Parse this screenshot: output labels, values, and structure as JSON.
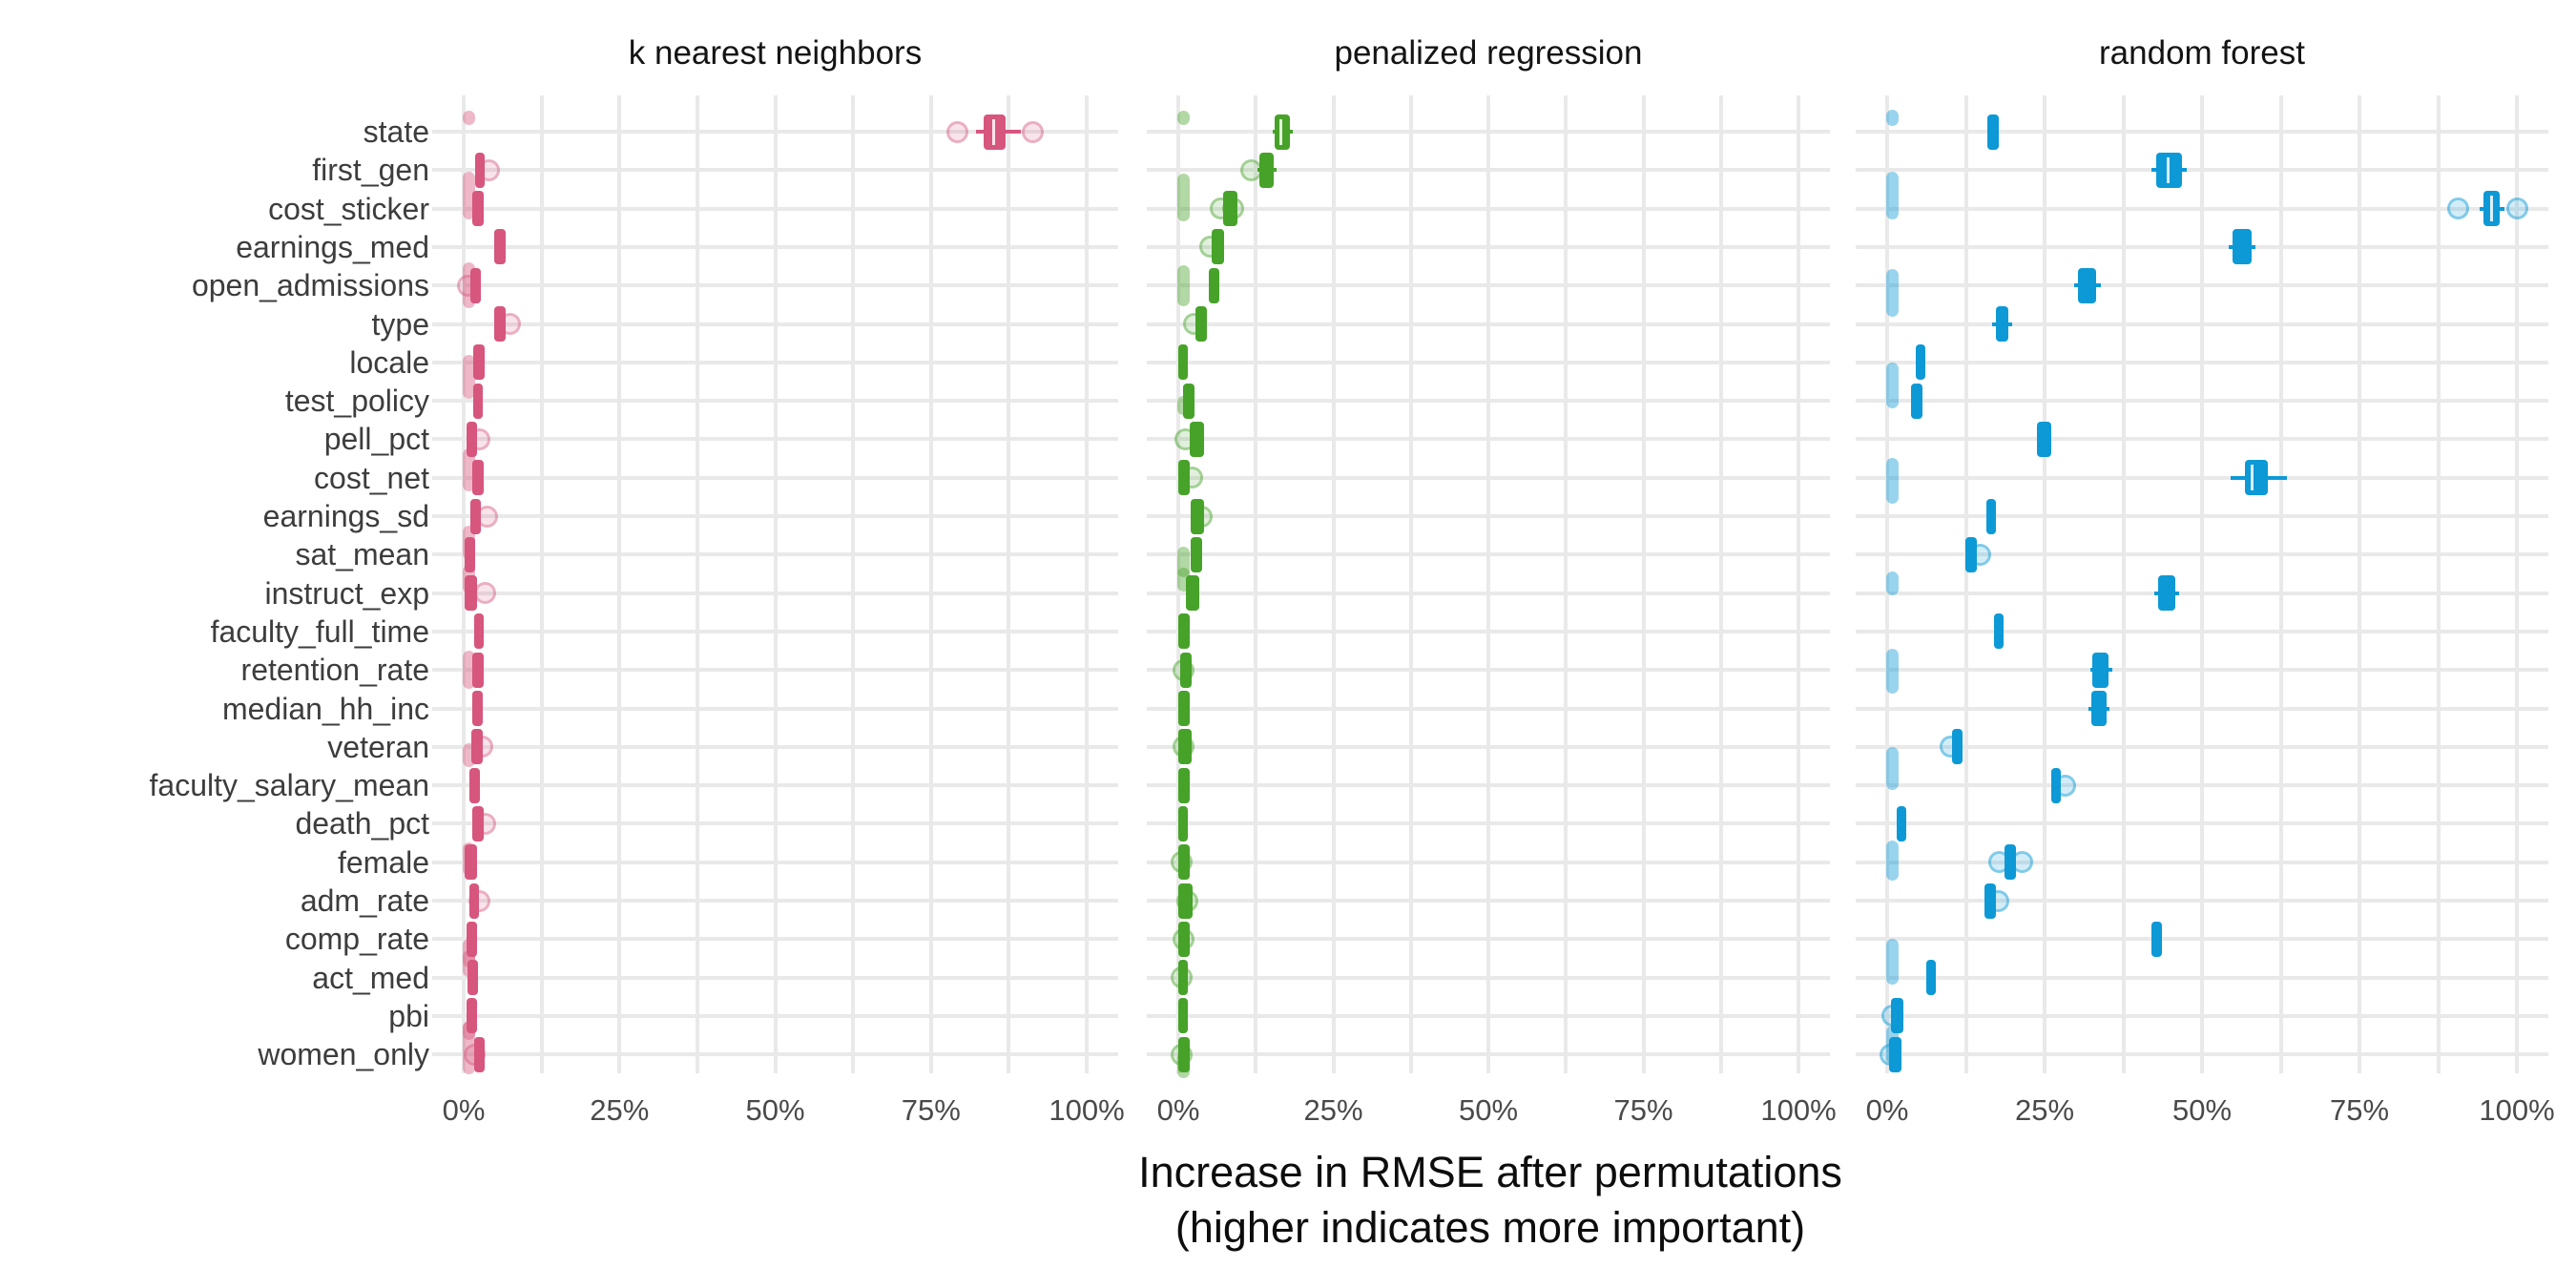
{
  "axis": {
    "x_tick_labels": [
      "0%",
      "25%",
      "50%",
      "75%",
      "100%"
    ],
    "x_tick_values": [
      0,
      25,
      50,
      75,
      100
    ],
    "caption_line1": "Increase in RMSE after permutations",
    "caption_line2": "(higher indicates more important)"
  },
  "colors": {
    "grid": "#e9e9e9",
    "knn": "#d6567e",
    "knn_light": "rgba(214,86,126,0.42)",
    "knn_pt_fill": "rgba(214,86,126,0.16)",
    "knn_pt_rim": "rgba(214,86,126,0.38)",
    "pen": "#47a229",
    "pen_light": "rgba(71,162,41,0.42)",
    "pen_pt_fill": "rgba(71,162,41,0.16)",
    "pen_pt_rim": "rgba(71,162,41,0.40)",
    "rf": "#0d99d6",
    "rf_light": "rgba(13,153,214,0.42)",
    "rf_pt_fill": "rgba(13,153,214,0.18)",
    "rf_pt_rim": "rgba(13,153,214,0.42)"
  },
  "variables": [
    "state",
    "first_gen",
    "cost_sticker",
    "earnings_med",
    "open_admissions",
    "type",
    "locale",
    "test_policy",
    "pell_pct",
    "cost_net",
    "earnings_sd",
    "sat_mean",
    "instruct_exp",
    "faculty_full_time",
    "retention_rate",
    "median_hh_inc",
    "veteran",
    "faculty_salary_mean",
    "death_pct",
    "female",
    "adm_rate",
    "comp_rate",
    "act_med",
    "pbi",
    "women_only"
  ],
  "chart_data": {
    "type": "boxplot",
    "x_unit": "percent increase in RMSE after permutation",
    "x_range": [
      0,
      100
    ],
    "grid_step_pct": 12.5,
    "legend_position": "none",
    "facets": [
      {
        "name": "k nearest neighbors",
        "color_key": "knn",
        "rows": [
          {
            "v": "state",
            "box": [
              83.5,
              87.0
            ],
            "med": 85.0,
            "whis": [
              82.3,
              89.4
            ],
            "pts": [
              79.3,
              91.3
            ],
            "bar": {
              "x": 0.8,
              "dy": -15,
              "h": 15
            }
          },
          {
            "v": "first_gen",
            "box": [
              1.8,
              3.4
            ],
            "pts": [
              4.0
            ]
          },
          {
            "v": "cost_sticker",
            "box": [
              1.4,
              3.2
            ],
            "bar": {
              "x": 0.8,
              "dy": -14,
              "h": 50
            }
          },
          {
            "v": "earnings_med",
            "box": [
              4.9,
              6.7
            ]
          },
          {
            "v": "open_admissions",
            "box": [
              1.0,
              2.8
            ],
            "pts": [
              0.7
            ],
            "bar": {
              "x": 0.8,
              "dy": 0,
              "h": 48
            }
          },
          {
            "v": "type",
            "box": [
              4.9,
              6.7
            ],
            "pts": [
              7.5
            ]
          },
          {
            "v": "locale",
            "box": [
              1.5,
              3.3
            ],
            "bar": {
              "x": 0.8,
              "dy": 15,
              "h": 46
            }
          },
          {
            "v": "test_policy",
            "box": [
              1.5,
              3.0
            ]
          },
          {
            "v": "pell_pct",
            "box": [
              0.5,
              2.2
            ],
            "pts": [
              2.6
            ]
          },
          {
            "v": "cost_net",
            "box": [
              1.4,
              3.2
            ],
            "bar": {
              "x": 0.8,
              "dy": -8,
              "h": 45
            }
          },
          {
            "v": "earnings_sd",
            "box": [
              1.0,
              2.8
            ],
            "pts": [
              3.7
            ]
          },
          {
            "v": "sat_mean",
            "box": [
              0.2,
              1.8
            ],
            "bar": {
              "x": 0.8,
              "dy": -12,
              "h": 36
            }
          },
          {
            "v": "instruct_exp",
            "box": [
              0.2,
              2.1
            ],
            "pts": [
              3.4
            ],
            "bar": {
              "x": 0.8,
              "dy": -15,
              "h": 30
            }
          },
          {
            "v": "faculty_full_time",
            "box": [
              1.7,
              3.2
            ]
          },
          {
            "v": "retention_rate",
            "box": [
              1.4,
              3.2
            ],
            "bar": {
              "x": 0.8,
              "dy": 0,
              "h": 40
            }
          },
          {
            "v": "median_hh_inc",
            "box": [
              1.4,
              3.0
            ]
          },
          {
            "v": "veteran",
            "box": [
              1.2,
              3.0
            ],
            "pts": [
              3.0
            ],
            "bar": {
              "x": 0.8,
              "dy": 9,
              "h": 25
            }
          },
          {
            "v": "faculty_salary_mean",
            "box": [
              0.9,
              2.6
            ]
          },
          {
            "v": "death_pct",
            "box": [
              1.4,
              3.2
            ],
            "pts": [
              3.5
            ]
          },
          {
            "v": "female",
            "box": [
              0.2,
              2.1
            ],
            "bar": {
              "x": 0.8,
              "dy": -3,
              "h": 35
            }
          },
          {
            "v": "adm_rate",
            "box": [
              0.9,
              2.4
            ],
            "pts": [
              2.6
            ]
          },
          {
            "v": "comp_rate",
            "box": [
              0.4,
              2.1
            ],
            "bar": {
              "x": 0.8,
              "dy": 15,
              "h": 30
            }
          },
          {
            "v": "act_med",
            "box": [
              0.6,
              2.3
            ],
            "bar": {
              "x": 0.8,
              "dy": -15,
              "h": 28
            }
          },
          {
            "v": "pbi",
            "box": [
              0.4,
              2.1
            ],
            "bar": {
              "x": 0.8,
              "dy": 15,
              "h": 20
            }
          },
          {
            "v": "women_only",
            "box": [
              1.7,
              3.4
            ],
            "pts": [
              1.8
            ],
            "bar": {
              "x": 0.8,
              "dy": -7,
              "h": 55
            }
          }
        ]
      },
      {
        "name": "penalized regression",
        "color_key": "pen",
        "rows": [
          {
            "v": "state",
            "box": [
              15.5,
              18.0
            ],
            "med": 16.6,
            "whis": [
              15.2,
              18.5
            ],
            "bar": {
              "x": 0.8,
              "dy": -15,
              "h": 15
            }
          },
          {
            "v": "first_gen",
            "box": [
              13.0,
              15.4
            ],
            "whis": [
              12.7,
              15.8
            ],
            "pts": [
              11.8
            ]
          },
          {
            "v": "cost_sticker",
            "box": [
              7.2,
              9.5
            ],
            "pts": [
              6.9,
              8.8
            ],
            "bar": {
              "x": 0.8,
              "dy": -12,
              "h": 50
            }
          },
          {
            "v": "earnings_med",
            "box": [
              5.4,
              7.4
            ],
            "pts": [
              5.1
            ]
          },
          {
            "v": "open_admissions",
            "box": [
              4.9,
              6.6
            ],
            "bar": {
              "x": 0.8,
              "dy": 0,
              "h": 43
            }
          },
          {
            "v": "type",
            "box": [
              2.8,
              4.6
            ],
            "pts": [
              2.6
            ]
          },
          {
            "v": "locale",
            "box": [
              0.0,
              1.5
            ]
          },
          {
            "v": "test_policy",
            "box": [
              0.8,
              2.6
            ],
            "bar": {
              "x": 0.8,
              "dy": 5,
              "h": 20
            }
          },
          {
            "v": "pell_pct",
            "box": [
              1.8,
              4.2
            ],
            "pts": [
              1.1
            ]
          },
          {
            "v": "cost_net",
            "box": [
              0.0,
              1.8
            ],
            "pts": [
              2.3
            ]
          },
          {
            "v": "earnings_sd",
            "box": [
              2.0,
              4.2
            ],
            "pts": [
              3.8
            ]
          },
          {
            "v": "sat_mean",
            "box": [
              2.0,
              3.8
            ],
            "bar": {
              "x": 0.8,
              "dy": 8,
              "h": 32
            }
          },
          {
            "v": "instruct_exp",
            "box": [
              1.2,
              3.4
            ],
            "bar": {
              "x": 0.8,
              "dy": -14,
              "h": 25
            }
          },
          {
            "v": "faculty_full_time",
            "box": [
              0.0,
              1.8
            ]
          },
          {
            "v": "retention_rate",
            "box": [
              0.3,
              2.1
            ],
            "pts": [
              0.8
            ]
          },
          {
            "v": "median_hh_inc",
            "box": [
              0.0,
              1.8
            ]
          },
          {
            "v": "veteran",
            "box": [
              0.0,
              2.1
            ],
            "pts": [
              0.8
            ]
          },
          {
            "v": "faculty_salary_mean",
            "box": [
              0.0,
              1.8
            ]
          },
          {
            "v": "death_pct",
            "box": [
              0.0,
              1.5
            ]
          },
          {
            "v": "female",
            "box": [
              0.0,
              1.8
            ],
            "pts": [
              0.5
            ]
          },
          {
            "v": "adm_rate",
            "box": [
              0.0,
              2.3
            ],
            "pts": [
              1.5
            ]
          },
          {
            "v": "comp_rate",
            "box": [
              0.0,
              1.8
            ],
            "pts": [
              0.8
            ]
          },
          {
            "v": "act_med",
            "box": [
              0.0,
              1.5
            ],
            "pts": [
              0.5
            ]
          },
          {
            "v": "pbi",
            "box": [
              0.0,
              1.5
            ]
          },
          {
            "v": "women_only",
            "box": [
              0.0,
              1.8
            ],
            "pts": [
              0.5
            ],
            "bar": {
              "x": 0.8,
              "dy": 10,
              "h": 30
            }
          }
        ]
      },
      {
        "name": "random forest",
        "color_key": "rf",
        "rows": [
          {
            "v": "state",
            "box": [
              15.9,
              17.7
            ],
            "bar": {
              "x": 0.8,
              "dy": -15,
              "h": 17
            }
          },
          {
            "v": "first_gen",
            "box": [
              42.7,
              46.8
            ],
            "med": 44.6,
            "whis": [
              42.0,
              47.6
            ]
          },
          {
            "v": "cost_sticker",
            "box": [
              94.7,
              97.3
            ],
            "med": 96.0,
            "whis": [
              94.1,
              98.0
            ],
            "pts": [
              90.7,
              100.0
            ],
            "bar": {
              "x": 0.8,
              "dy": -14,
              "h": 50
            }
          },
          {
            "v": "earnings_med",
            "box": [
              54.8,
              57.9
            ],
            "whis": [
              54.3,
              58.5
            ]
          },
          {
            "v": "open_admissions",
            "box": [
              30.3,
              33.2
            ],
            "whis": [
              29.7,
              33.9
            ],
            "bar": {
              "x": 0.8,
              "dy": 8,
              "h": 50
            }
          },
          {
            "v": "type",
            "box": [
              17.3,
              19.2
            ],
            "whis": [
              16.7,
              19.9
            ]
          },
          {
            "v": "locale",
            "box": [
              4.5,
              6.1
            ]
          },
          {
            "v": "test_policy",
            "box": [
              3.8,
              5.6
            ],
            "bar": {
              "x": 0.8,
              "dy": -16,
              "h": 48
            }
          },
          {
            "v": "pell_pct",
            "box": [
              23.8,
              26.0
            ]
          },
          {
            "v": "cost_net",
            "box": [
              56.8,
              60.5
            ],
            "med": 57.9,
            "whis": [
              54.5,
              63.5
            ],
            "bar": {
              "x": 0.8,
              "dy": 3,
              "h": 48
            }
          },
          {
            "v": "earnings_sd",
            "box": [
              15.7,
              17.3
            ]
          },
          {
            "v": "sat_mean",
            "box": [
              12.4,
              14.2
            ],
            "pts": [
              14.8
            ]
          },
          {
            "v": "instruct_exp",
            "box": [
              43.0,
              45.8
            ],
            "whis": [
              42.4,
              46.4
            ],
            "bar": {
              "x": 0.8,
              "dy": -10,
              "h": 25
            }
          },
          {
            "v": "faculty_full_time",
            "box": [
              17.0,
              18.5
            ]
          },
          {
            "v": "retention_rate",
            "box": [
              32.6,
              35.2
            ],
            "whis": [
              32.2,
              35.7
            ],
            "bar": {
              "x": 0.8,
              "dy": 1,
              "h": 47
            }
          },
          {
            "v": "median_hh_inc",
            "box": [
              32.4,
              34.8
            ],
            "whis": [
              32.0,
              35.3
            ]
          },
          {
            "v": "veteran",
            "box": [
              10.3,
              12.0
            ],
            "pts": [
              10.0
            ]
          },
          {
            "v": "faculty_salary_mean",
            "box": [
              26.0,
              27.6
            ],
            "pts": [
              28.2
            ],
            "bar": {
              "x": 0.8,
              "dy": -18,
              "h": 45
            }
          },
          {
            "v": "death_pct",
            "box": [
              1.5,
              3.0
            ]
          },
          {
            "v": "female",
            "box": [
              18.7,
              20.5
            ],
            "pts": [
              17.8,
              21.5
            ],
            "bar": {
              "x": 0.8,
              "dy": -2,
              "h": 42
            }
          },
          {
            "v": "adm_rate",
            "box": [
              15.5,
              17.2
            ],
            "pts": [
              17.7
            ]
          },
          {
            "v": "comp_rate",
            "box": [
              42.0,
              43.7
            ]
          },
          {
            "v": "act_med",
            "box": [
              6.2,
              7.6
            ],
            "bar": {
              "x": 0.8,
              "dy": -17,
              "h": 48
            }
          },
          {
            "v": "pbi",
            "box": [
              0.6,
              2.6
            ],
            "pts": [
              0.8
            ]
          },
          {
            "v": "women_only",
            "box": [
              0.3,
              2.3
            ],
            "pts": [
              0.5
            ],
            "bar": {
              "x": 0.8,
              "dy": -10,
              "h": 40
            }
          }
        ]
      }
    ]
  }
}
